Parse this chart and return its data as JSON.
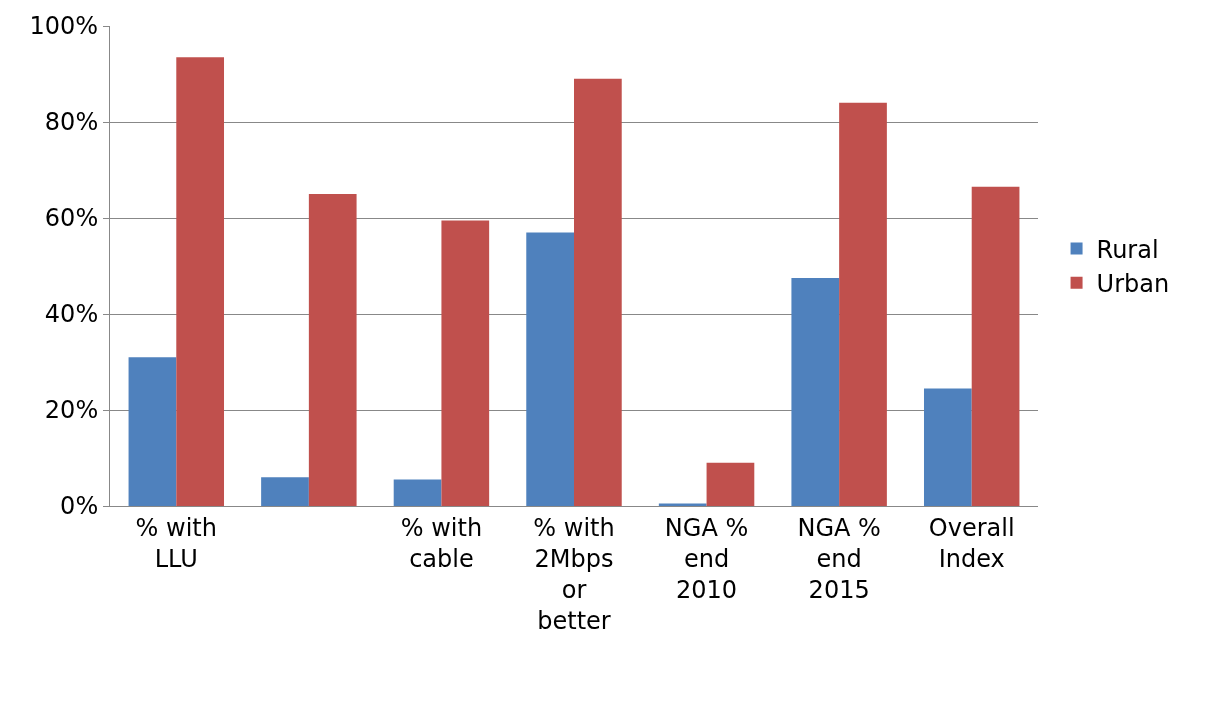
{
  "chart_data": {
    "type": "bar",
    "categories": [
      "% with LLU",
      null,
      "% with cable",
      "% with 2Mbps or better",
      "NGA % end 2010",
      "NGA % end 2015",
      "Overall Index"
    ],
    "series": [
      {
        "name": "Rural",
        "color": "#4f81bd",
        "values": [
          31,
          6,
          5.5,
          57,
          0.5,
          47.5,
          24.5
        ]
      },
      {
        "name": "Urban",
        "color": "#c0504d",
        "values": [
          93.5,
          65,
          59.5,
          89,
          9,
          84,
          66.5
        ]
      }
    ],
    "ylim": [
      0,
      100
    ],
    "yticks": [
      {
        "value": 0,
        "label": "0%"
      },
      {
        "value": 20,
        "label": "20%"
      },
      {
        "value": 40,
        "label": "40%"
      },
      {
        "value": 60,
        "label": "60%"
      },
      {
        "value": 80,
        "label": "80%"
      },
      {
        "value": 100,
        "label": "100%"
      }
    ],
    "grid": "y",
    "legend": "right"
  }
}
